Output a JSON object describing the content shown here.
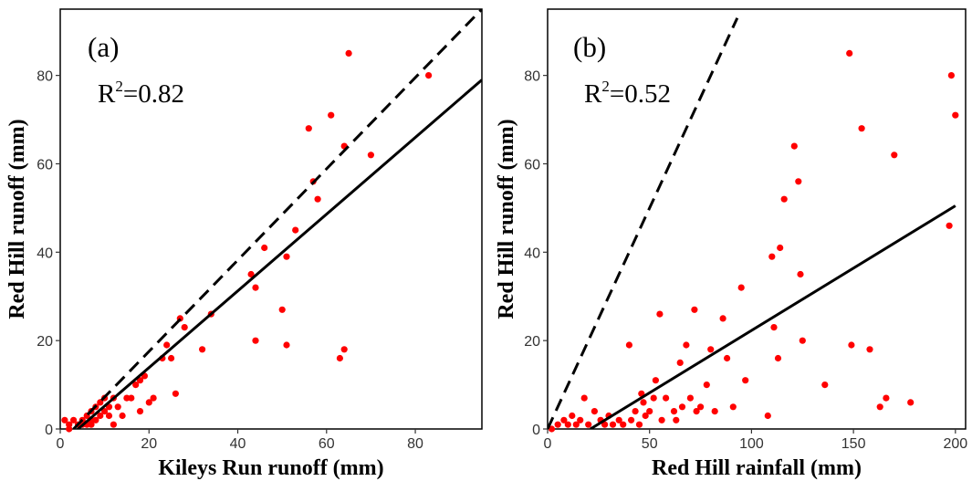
{
  "chart_data": [
    {
      "type": "scatter",
      "panel_label": "(a)",
      "r2_base": "R",
      "r2_sup": "2",
      "r2_value": "=0.82",
      "xlabel": "Kileys Run runoff (mm)",
      "ylabel": "Red Hill runoff (mm)",
      "xlim": [
        0,
        95
      ],
      "ylim": [
        0,
        95
      ],
      "xticks": [
        0,
        20,
        40,
        60,
        80
      ],
      "yticks": [
        0,
        20,
        40,
        60,
        80
      ],
      "grid": false,
      "point_color": "#ff0000",
      "series": [
        {
          "values": [
            [
              1,
              2
            ],
            [
              2,
              1
            ],
            [
              2,
              0
            ],
            [
              3,
              2
            ],
            [
              4,
              1
            ],
            [
              5,
              1
            ],
            [
              5,
              2
            ],
            [
              6,
              1
            ],
            [
              6,
              3
            ],
            [
              7,
              1
            ],
            [
              7,
              2
            ],
            [
              7,
              4
            ],
            [
              8,
              2
            ],
            [
              8,
              5
            ],
            [
              9,
              3
            ],
            [
              9,
              6
            ],
            [
              10,
              4
            ],
            [
              10,
              7
            ],
            [
              11,
              3
            ],
            [
              11,
              5
            ],
            [
              12,
              7
            ],
            [
              12,
              1
            ],
            [
              13,
              5
            ],
            [
              14,
              3
            ],
            [
              15,
              7
            ],
            [
              16,
              7
            ],
            [
              17,
              10
            ],
            [
              18,
              11
            ],
            [
              18,
              4
            ],
            [
              19,
              12
            ],
            [
              20,
              6
            ],
            [
              21,
              7
            ],
            [
              23,
              16
            ],
            [
              24,
              19
            ],
            [
              25,
              16
            ],
            [
              26,
              8
            ],
            [
              27,
              25
            ],
            [
              28,
              23
            ],
            [
              32,
              18
            ],
            [
              34,
              26
            ],
            [
              43,
              35
            ],
            [
              44,
              32
            ],
            [
              44,
              20
            ],
            [
              46,
              41
            ],
            [
              50,
              27
            ],
            [
              51,
              39
            ],
            [
              51,
              19
            ],
            [
              53,
              45
            ],
            [
              56,
              68
            ],
            [
              57,
              56
            ],
            [
              58,
              52
            ],
            [
              61,
              71
            ],
            [
              63,
              16
            ],
            [
              64,
              18
            ],
            [
              64,
              64
            ],
            [
              65,
              85
            ],
            [
              70,
              62
            ],
            [
              83,
              80
            ]
          ]
        }
      ],
      "fit_line": {
        "color": "#000000",
        "style": "solid",
        "points": [
          [
            0,
            -3.5
          ],
          [
            95,
            79
          ]
        ]
      },
      "reference_line": {
        "color": "#000000",
        "style": "dashed",
        "points": [
          [
            3,
            0
          ],
          [
            95,
            95
          ]
        ]
      }
    },
    {
      "type": "scatter",
      "panel_label": "(b)",
      "r2_base": "R",
      "r2_sup": "2",
      "r2_value": "=0.52",
      "xlabel": "Red Hill rainfall (mm)",
      "ylabel": "Red Hill runoff (mm)",
      "xlim": [
        0,
        205
      ],
      "ylim": [
        0,
        95
      ],
      "xticks": [
        0,
        50,
        100,
        150,
        200
      ],
      "yticks": [
        0,
        20,
        40,
        60,
        80
      ],
      "grid": false,
      "point_color": "#ff0000",
      "series": [
        {
          "values": [
            [
              2,
              0
            ],
            [
              5,
              1
            ],
            [
              8,
              2
            ],
            [
              10,
              1
            ],
            [
              12,
              3
            ],
            [
              14,
              1
            ],
            [
              16,
              2
            ],
            [
              18,
              7
            ],
            [
              20,
              1
            ],
            [
              23,
              4
            ],
            [
              26,
              2
            ],
            [
              28,
              1
            ],
            [
              30,
              3
            ],
            [
              32,
              1
            ],
            [
              35,
              2
            ],
            [
              37,
              1
            ],
            [
              40,
              19
            ],
            [
              41,
              2
            ],
            [
              43,
              4
            ],
            [
              45,
              1
            ],
            [
              46,
              8
            ],
            [
              47,
              6
            ],
            [
              48,
              3
            ],
            [
              50,
              4
            ],
            [
              52,
              7
            ],
            [
              53,
              11
            ],
            [
              55,
              26
            ],
            [
              56,
              2
            ],
            [
              58,
              7
            ],
            [
              62,
              4
            ],
            [
              63,
              2
            ],
            [
              65,
              15
            ],
            [
              66,
              5
            ],
            [
              68,
              19
            ],
            [
              70,
              7
            ],
            [
              72,
              27
            ],
            [
              73,
              4
            ],
            [
              75,
              5
            ],
            [
              78,
              10
            ],
            [
              80,
              18
            ],
            [
              82,
              4
            ],
            [
              86,
              25
            ],
            [
              88,
              16
            ],
            [
              91,
              5
            ],
            [
              95,
              32
            ],
            [
              97,
              11
            ],
            [
              108,
              3
            ],
            [
              110,
              39
            ],
            [
              111,
              23
            ],
            [
              113,
              16
            ],
            [
              114,
              41
            ],
            [
              116,
              52
            ],
            [
              121,
              64
            ],
            [
              123,
              56
            ],
            [
              124,
              35
            ],
            [
              125,
              20
            ],
            [
              136,
              10
            ],
            [
              148,
              85
            ],
            [
              149,
              19
            ],
            [
              154,
              68
            ],
            [
              158,
              18
            ],
            [
              163,
              5
            ],
            [
              166,
              7
            ],
            [
              170,
              62
            ],
            [
              178,
              6
            ],
            [
              197,
              46
            ],
            [
              198,
              80
            ],
            [
              200,
              71
            ]
          ]
        }
      ],
      "fit_line": {
        "color": "#000000",
        "style": "solid",
        "points": [
          [
            21,
            0
          ],
          [
            200,
            50.5
          ]
        ]
      },
      "reference_line": {
        "color": "#000000",
        "style": "dashed",
        "points": [
          [
            0,
            0
          ],
          [
            93,
            93
          ]
        ]
      }
    }
  ]
}
